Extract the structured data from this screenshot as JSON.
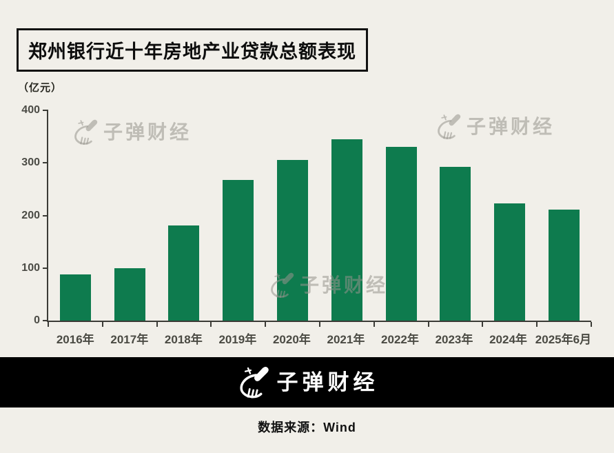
{
  "page": {
    "title": "郑州银行近十年房地产业贷款总额表现",
    "unit_label": "（亿元）",
    "background": "#f1efe9"
  },
  "chart_data": {
    "type": "bar",
    "title": "郑州银行近十年房地产业贷款总额表现",
    "ylabel": "（亿元）",
    "xlabel": "",
    "categories": [
      "2016年",
      "2017年",
      "2018年",
      "2019年",
      "2020年",
      "2021年",
      "2022年",
      "2023年",
      "2024年",
      "2025年6月"
    ],
    "values": [
      88,
      100,
      181,
      267,
      306,
      345,
      330,
      292,
      223,
      211
    ],
    "ylim": [
      0,
      400
    ],
    "y_ticks": [
      0,
      100,
      200,
      300,
      400
    ],
    "bar_color": "#0e7b4e",
    "grid": false,
    "legend": false
  },
  "watermark": {
    "brand": "子弹财经"
  },
  "footer": {
    "brand": "子弹财经",
    "source": "数据来源：Wind"
  }
}
